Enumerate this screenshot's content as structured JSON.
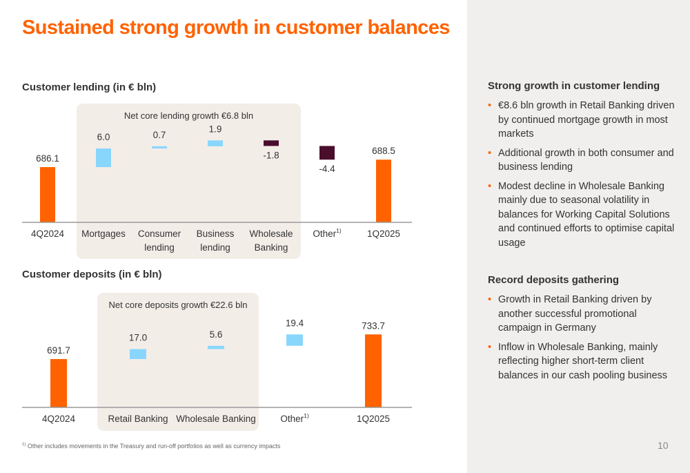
{
  "title": "Sustained strong growth in customer balances",
  "footnote": "Other includes movements in the Treasury and run-off portfolios as well as currency impacts",
  "footnote_marker": "1)",
  "page_number": "10",
  "colors": {
    "orange": "#ff6200",
    "light_blue": "#89d6fd",
    "dark_purple": "#4a0d2c",
    "panel_bg": "#f0efed",
    "box_bg": "#f3ede8"
  },
  "chart_data": [
    {
      "type": "bar",
      "title": "Customer lending (in € bln)",
      "box_label": "Net core lending growth €6.8 bln",
      "categories": [
        "4Q2024",
        "Mortgages",
        "Consumer lending",
        "Business lending",
        "Wholesale Banking",
        "Other",
        "1Q2025"
      ],
      "values": [
        686.1,
        6.0,
        0.7,
        1.9,
        -1.8,
        -4.4,
        688.5
      ],
      "labels": [
        "686.1",
        "6.0",
        "0.7",
        "1.9",
        "-1.8",
        "-4.4",
        "688.5"
      ],
      "superscripts": [
        "",
        "",
        "",
        "",
        "",
        "1)",
        ""
      ]
    },
    {
      "type": "bar",
      "title": "Customer deposits (in € bln)",
      "box_label": "Net core deposits growth €22.6 bln",
      "categories": [
        "4Q2024",
        "Retail Banking",
        "Wholesale Banking",
        "Other",
        "1Q2025"
      ],
      "values": [
        691.7,
        17.0,
        5.6,
        19.4,
        733.7
      ],
      "labels": [
        "691.7",
        "17.0",
        "5.6",
        "19.4",
        "733.7"
      ],
      "superscripts": [
        "",
        "",
        "",
        "1)",
        ""
      ]
    }
  ],
  "sections": [
    {
      "heading": "Strong growth in customer lending",
      "bullets": [
        "€8.6 bln growth in Retail Banking driven by continued mortgage growth in most markets",
        "Additional growth in both consumer and business lending",
        "Modest decline in Wholesale Banking mainly due to seasonal volatility in balances for Working Capital Solutions and continued efforts to optimise capital usage"
      ]
    },
    {
      "heading": "Record deposits gathering",
      "bullets": [
        "Growth in Retail Banking driven by another successful promotional campaign in Germany",
        "Inflow in Wholesale Banking, mainly reflecting higher short-term client balances in our cash pooling business"
      ]
    }
  ]
}
